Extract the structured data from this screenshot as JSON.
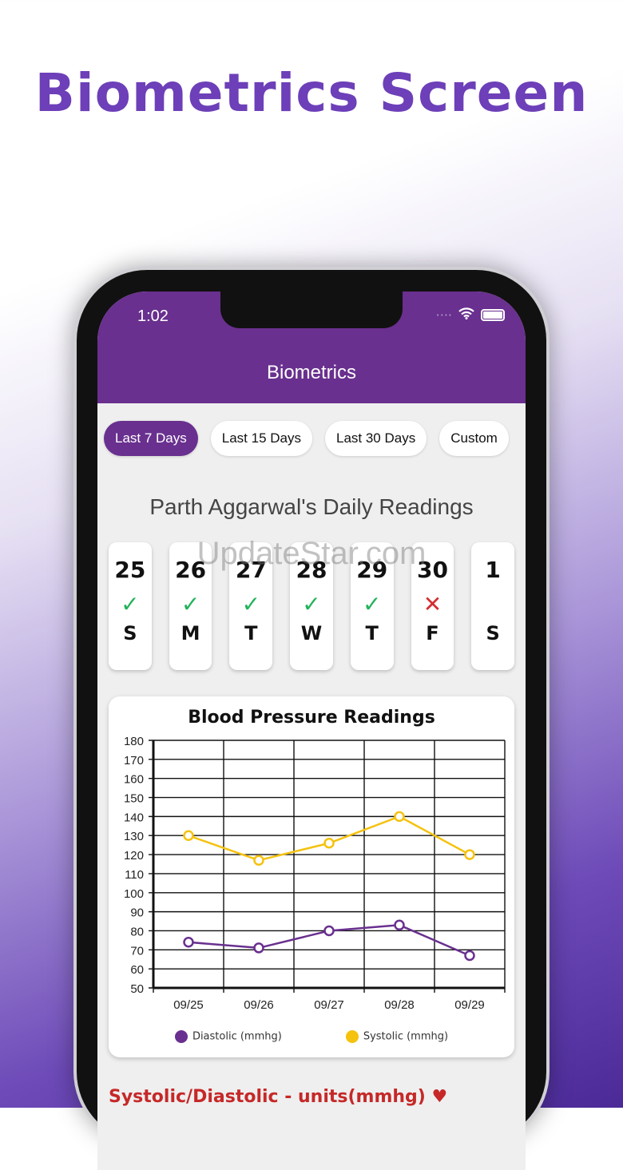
{
  "promo_title": "Biometrics Screen",
  "watermark": "UpdateStar.com",
  "status": {
    "time": "1:02"
  },
  "header": {
    "title": "Biometrics"
  },
  "filters": [
    {
      "label": "Last 7 Days",
      "active": true
    },
    {
      "label": "Last 15 Days"
    },
    {
      "label": "Last 30 Days"
    },
    {
      "label": "Custom"
    }
  ],
  "readings_title": "Parth Aggarwal's Daily Readings",
  "days": [
    {
      "num": "25",
      "day": "S",
      "status": "check"
    },
    {
      "num": "26",
      "day": "M",
      "status": "check"
    },
    {
      "num": "27",
      "day": "T",
      "status": "check"
    },
    {
      "num": "28",
      "day": "W",
      "status": "check"
    },
    {
      "num": "29",
      "day": "T",
      "status": "check"
    },
    {
      "num": "30",
      "day": "F",
      "status": "cross"
    },
    {
      "num": "1",
      "day": "S",
      "status": "none"
    }
  ],
  "colors": {
    "brand": "#69308f",
    "check": "#22b35a",
    "cross": "#d32f2f",
    "diastolic": "#69308f",
    "systolic": "#f5c20f"
  },
  "chart_data": {
    "type": "line",
    "title": "Blood Pressure Readings",
    "categories": [
      "09/25",
      "09/26",
      "09/27",
      "09/28",
      "09/29"
    ],
    "ylim": [
      50,
      180
    ],
    "yticks": [
      50,
      60,
      70,
      80,
      90,
      100,
      110,
      120,
      130,
      140,
      150,
      160,
      170,
      180
    ],
    "grid": true,
    "legend": "bottom",
    "series": [
      {
        "name": "Diastolic (mmhg)",
        "values": [
          74,
          71,
          80,
          83,
          67
        ]
      },
      {
        "name": "Systolic (mmhg)",
        "values": [
          130,
          117,
          126,
          140,
          120
        ]
      }
    ]
  },
  "units_label": "Systolic/Diastolic - units(mmhg)"
}
